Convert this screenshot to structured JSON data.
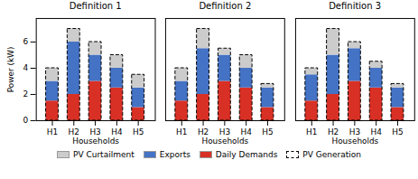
{
  "chart_data": [
    {
      "type": "bar",
      "title": "Definition 1",
      "xlabel": "Households",
      "ylabel": "Power (kW)",
      "categories": [
        "H1",
        "H2",
        "H3",
        "H4",
        "H5"
      ],
      "series": [
        {
          "name": "PV Curtailment",
          "color": "#cccccc",
          "values": [
            1.0,
            1.0,
            1.0,
            1.0,
            1.0
          ]
        },
        {
          "name": "Exports",
          "color": "#4472c4",
          "values": [
            1.5,
            4.0,
            2.0,
            1.5,
            1.5
          ]
        },
        {
          "name": "Daily Demands",
          "color": "#d93025",
          "values": [
            1.5,
            2.0,
            3.0,
            2.5,
            1.0
          ]
        },
        {
          "name": "PV Generation",
          "type": "outline",
          "line_style": "dashed",
          "color": "#000000",
          "values": [
            4.0,
            7.0,
            6.0,
            5.0,
            3.5
          ]
        }
      ],
      "stacked": true,
      "ylim": [
        0,
        7.8
      ],
      "yticks": [
        0,
        2,
        4,
        6
      ],
      "legend": "bottom"
    },
    {
      "type": "bar",
      "title": "Definition 2",
      "xlabel": "Households",
      "categories": [
        "H1",
        "H2",
        "H3",
        "H4",
        "H5"
      ],
      "series": [
        {
          "name": "PV Curtailment",
          "color": "#cccccc",
          "values": [
            1.0,
            1.5,
            0.5,
            1.0,
            0.3
          ]
        },
        {
          "name": "Exports",
          "color": "#4472c4",
          "values": [
            1.5,
            3.5,
            2.0,
            1.5,
            1.5
          ]
        },
        {
          "name": "Daily Demands",
          "color": "#d93025",
          "values": [
            1.5,
            2.0,
            3.0,
            2.5,
            1.0
          ]
        },
        {
          "name": "PV Generation",
          "type": "outline",
          "line_style": "dashed",
          "color": "#000000",
          "values": [
            4.0,
            7.0,
            5.5,
            5.0,
            2.8
          ]
        }
      ],
      "stacked": true,
      "ylim": [
        0,
        7.8
      ],
      "yticks": [
        0,
        2,
        4,
        6
      ],
      "tick_labels": "x",
      "legend": "bottom"
    },
    {
      "type": "bar",
      "title": "Definition 3",
      "xlabel": "Households",
      "categories": [
        "H1",
        "H2",
        "H3",
        "H4",
        "H5"
      ],
      "series": [
        {
          "name": "PV Curtailment",
          "color": "#cccccc",
          "values": [
            0.5,
            2.0,
            0.5,
            0.5,
            0.3
          ]
        },
        {
          "name": "Exports",
          "color": "#4472c4",
          "values": [
            2.0,
            3.0,
            2.5,
            1.5,
            1.5
          ]
        },
        {
          "name": "Daily Demands",
          "color": "#d93025",
          "values": [
            1.5,
            2.0,
            3.0,
            2.5,
            1.0
          ]
        },
        {
          "name": "PV Generation",
          "type": "outline",
          "line_style": "dashed",
          "color": "#000000",
          "values": [
            4.0,
            7.0,
            6.0,
            4.5,
            2.8
          ]
        }
      ],
      "stacked": true,
      "ylim": [
        0,
        7.8
      ],
      "yticks": [
        0,
        2,
        4,
        6
      ],
      "tick_labels": "x",
      "legend": "bottom"
    }
  ]
}
